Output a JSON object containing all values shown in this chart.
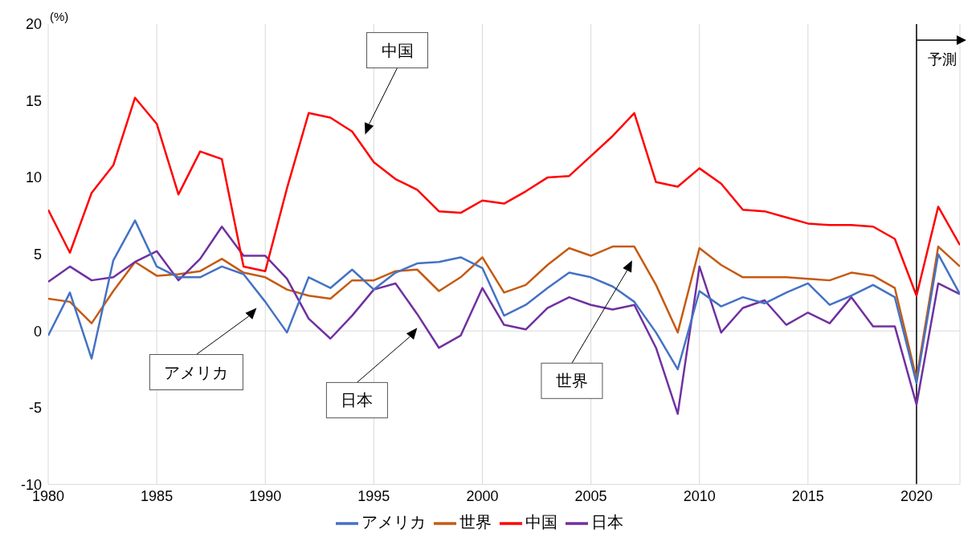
{
  "chart_data": {
    "type": "line",
    "ylabel": "(%)",
    "x": [
      1980,
      1981,
      1982,
      1983,
      1984,
      1985,
      1986,
      1987,
      1988,
      1989,
      1990,
      1991,
      1992,
      1993,
      1994,
      1995,
      1996,
      1997,
      1998,
      1999,
      2000,
      2001,
      2002,
      2003,
      2004,
      2005,
      2006,
      2007,
      2008,
      2009,
      2010,
      2011,
      2012,
      2013,
      2014,
      2015,
      2016,
      2017,
      2018,
      2019,
      2020,
      2021,
      2022
    ],
    "series": [
      {
        "name": "世界",
        "color": "#c55a11",
        "values": [
          2.1,
          1.9,
          0.5,
          2.6,
          4.5,
          3.6,
          3.7,
          3.9,
          4.7,
          3.8,
          3.5,
          2.7,
          2.3,
          2.1,
          3.3,
          3.3,
          3.9,
          4.0,
          2.6,
          3.5,
          4.8,
          2.5,
          3.0,
          4.3,
          5.4,
          4.9,
          5.5,
          5.5,
          3.0,
          -0.1,
          5.4,
          4.3,
          3.5,
          3.5,
          3.5,
          3.4,
          3.3,
          3.8,
          3.6,
          2.8,
          -3.1,
          5.5,
          4.2
        ]
      },
      {
        "name": "日本",
        "color": "#7030a0",
        "values": [
          3.2,
          4.2,
          3.3,
          3.5,
          4.5,
          5.2,
          3.3,
          4.7,
          6.8,
          4.9,
          4.9,
          3.4,
          0.8,
          -0.5,
          1.0,
          2.7,
          3.1,
          1.1,
          -1.1,
          -0.3,
          2.8,
          0.4,
          0.1,
          1.5,
          2.2,
          1.7,
          1.4,
          1.7,
          -1.1,
          -5.4,
          4.2,
          -0.1,
          1.5,
          2.0,
          0.4,
          1.2,
          0.5,
          2.2,
          0.3,
          0.3,
          -4.8,
          3.1,
          2.4
        ]
      },
      {
        "name": "アメリカ",
        "color": "#4472c4",
        "values": [
          -0.3,
          2.5,
          -1.8,
          4.6,
          7.2,
          4.2,
          3.5,
          3.5,
          4.2,
          3.7,
          1.9,
          -0.1,
          3.5,
          2.8,
          4.0,
          2.7,
          3.8,
          4.4,
          4.5,
          4.8,
          4.1,
          1.0,
          1.7,
          2.8,
          3.8,
          3.5,
          2.9,
          1.9,
          -0.1,
          -2.5,
          2.6,
          1.6,
          2.2,
          1.8,
          2.5,
          3.1,
          1.7,
          2.3,
          3.0,
          2.2,
          -3.4,
          5.0,
          2.4
        ]
      },
      {
        "name": "中国",
        "color": "#ff0000",
        "values": [
          7.9,
          5.1,
          9.0,
          10.8,
          15.2,
          13.5,
          8.9,
          11.7,
          11.2,
          4.2,
          3.9,
          9.3,
          14.2,
          13.9,
          13.0,
          11.0,
          9.9,
          9.2,
          7.8,
          7.7,
          8.5,
          8.3,
          9.1,
          10.0,
          10.1,
          11.4,
          12.7,
          14.2,
          9.7,
          9.4,
          10.6,
          9.6,
          7.9,
          7.8,
          7.4,
          7.0,
          6.9,
          6.9,
          6.8,
          6.0,
          2.3,
          8.1,
          5.6
        ]
      }
    ],
    "xlim": [
      1980,
      2022
    ],
    "xticks": [
      1980,
      1985,
      1990,
      1995,
      2000,
      2005,
      2010,
      2015,
      2020
    ],
    "ylim": [
      -10,
      20
    ],
    "yticks": [
      -10,
      -5,
      0,
      5,
      10,
      15,
      20
    ],
    "grid": "x",
    "legend": "bottom",
    "marker": "none",
    "line_style": "solid",
    "ref_lines": [
      {
        "axis": "y",
        "value": 0,
        "color": "#d9d9d9"
      },
      {
        "axis": "x",
        "value": 2020,
        "label": "予測",
        "color": "#000000"
      }
    ],
    "annotations": [
      "中国",
      "アメリカ",
      "日本",
      "世界"
    ]
  }
}
